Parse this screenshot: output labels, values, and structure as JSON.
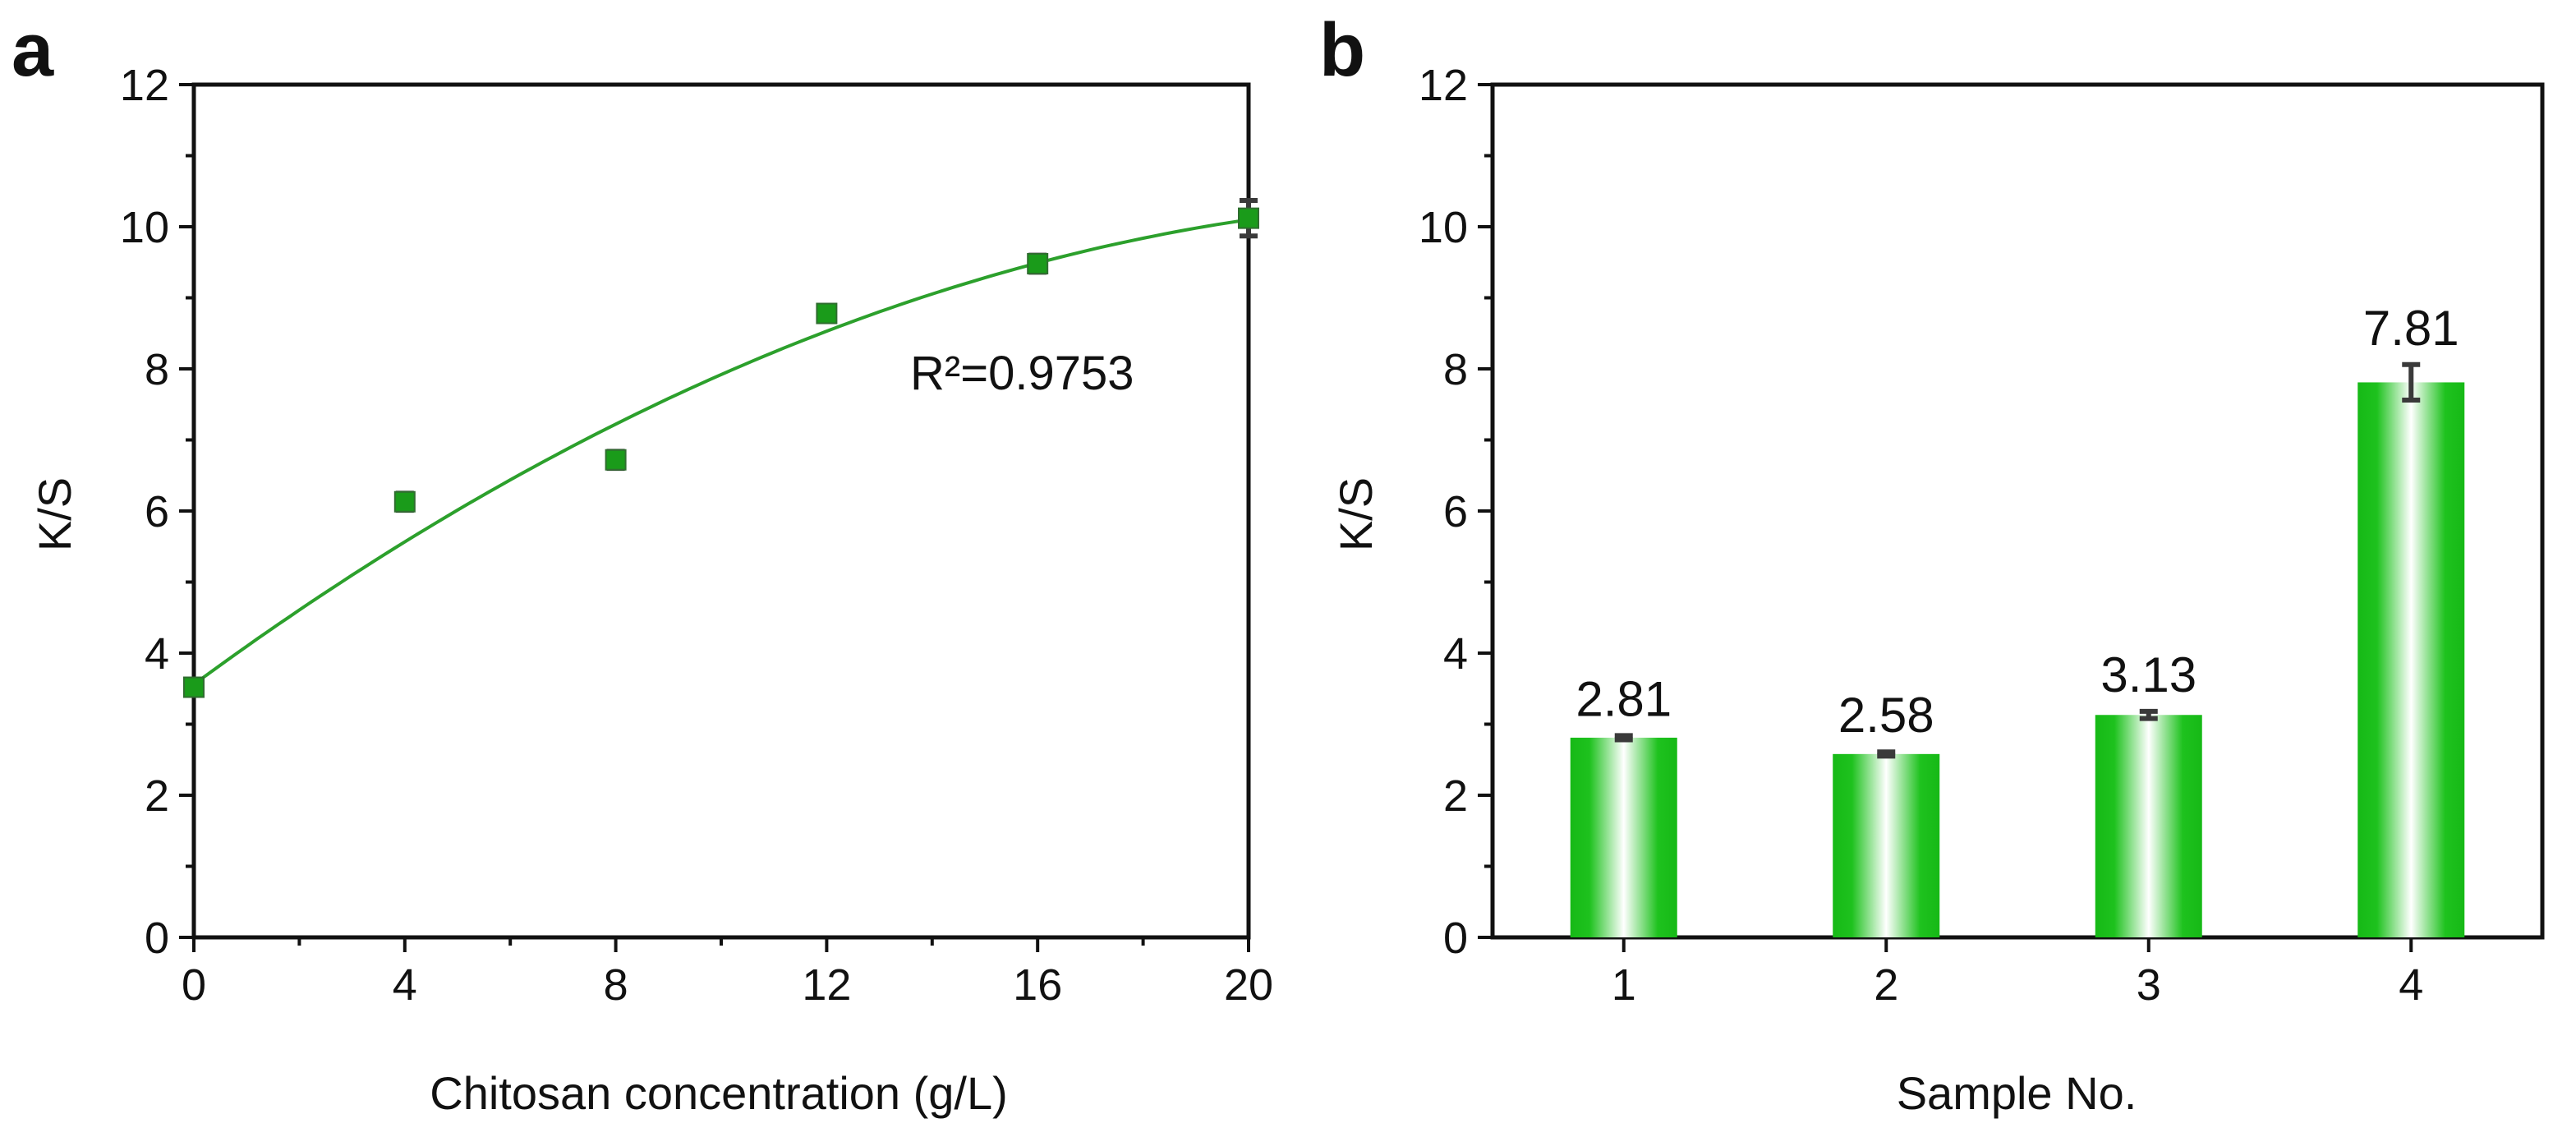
{
  "chart_data": [
    {
      "panel": "a",
      "type": "scatter",
      "title": "",
      "xlabel": "Chitosan concentration (g/L)",
      "ylabel": "K/S",
      "xlim": [
        0,
        20
      ],
      "ylim": [
        0,
        12
      ],
      "xticks": [
        "0",
        "4",
        "8",
        "12",
        "16",
        "20"
      ],
      "yticks": [
        "0",
        "2",
        "4",
        "6",
        "8",
        "10",
        "12"
      ],
      "series": [
        {
          "name": "K/S",
          "color": "#1a9b1a",
          "x": [
            0,
            4,
            8,
            12,
            16,
            20
          ],
          "y": [
            3.52,
            6.13,
            6.72,
            8.78,
            9.48,
            10.12
          ],
          "err": [
            0.08,
            0.12,
            0.12,
            0.1,
            0.12,
            0.25
          ]
        }
      ],
      "fit": {
        "color": "#2ca02c",
        "coeffs": [
          3.56,
          0.545,
          -0.0109
        ],
        "annotation": "R²=0.9753"
      }
    },
    {
      "panel": "b",
      "type": "bar",
      "title": "",
      "xlabel": "Sample No.",
      "ylabel": "K/S",
      "ylim": [
        0,
        12
      ],
      "yticks": [
        "0",
        "2",
        "4",
        "6",
        "8",
        "10",
        "12"
      ],
      "categories": [
        "1",
        "2",
        "3",
        "4"
      ],
      "values": [
        2.81,
        2.58,
        3.13,
        7.81
      ],
      "labels": [
        "2.81",
        "2.58",
        "3.13",
        "7.81"
      ],
      "err": [
        0.03,
        0.03,
        0.05,
        0.25
      ],
      "bar_color": "#1ec21e"
    }
  ]
}
